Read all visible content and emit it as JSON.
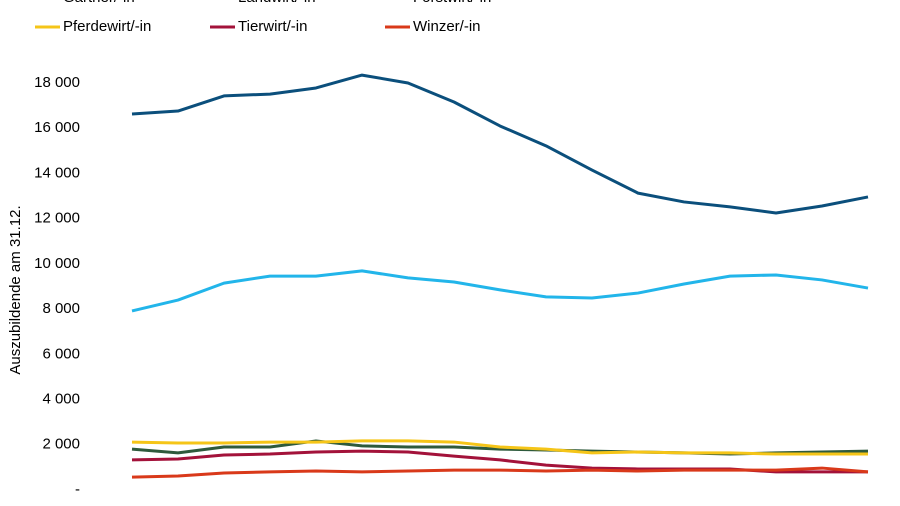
{
  "chart_data": {
    "type": "line",
    "y_label": "Auszubildende am 31.12.",
    "categories": [
      null,
      null,
      null,
      null,
      null,
      null,
      null,
      null,
      null,
      null,
      null,
      null,
      null,
      null,
      null,
      null,
      null
    ],
    "series": [
      {
        "name": "Gärtner/-in",
        "color": "#0b4f7c",
        "values": [
          16630,
          16760,
          17430,
          17510,
          17780,
          18350,
          18000,
          17160,
          16100,
          15220,
          14150,
          13130,
          12740,
          12520,
          12250,
          12560,
          12960
        ]
      },
      {
        "name": "Landwirt/-in",
        "color": "#22b5ea",
        "values": [
          7920,
          8400,
          9150,
          9460,
          9460,
          9690,
          9380,
          9200,
          8850,
          8540,
          8490,
          8710,
          9110,
          9460,
          9510,
          9290,
          8930
        ]
      },
      {
        "name": "Forstwirt/-in",
        "color": "#2e5a3c",
        "values": [
          1810,
          1640,
          1900,
          1900,
          2170,
          1950,
          1900,
          1900,
          1810,
          1770,
          1720,
          1680,
          1640,
          1590,
          1640,
          1680,
          1720
        ]
      },
      {
        "name": "Pferdewirt/-in",
        "color": "#f5c518",
        "values": [
          2120,
          2080,
          2080,
          2120,
          2120,
          2170,
          2170,
          2120,
          1900,
          1810,
          1640,
          1680,
          1640,
          1640,
          1590,
          1590,
          1590
        ]
      },
      {
        "name": "Tierwirt/-in",
        "color": "#a3123a",
        "values": [
          1330,
          1370,
          1550,
          1590,
          1680,
          1720,
          1680,
          1500,
          1330,
          1100,
          970,
          930,
          930,
          930,
          800,
          800,
          800
        ]
      },
      {
        "name": "Winzer/-in",
        "color": "#d9391a",
        "values": [
          570,
          620,
          750,
          800,
          840,
          800,
          840,
          880,
          880,
          840,
          880,
          840,
          880,
          880,
          880,
          970,
          800
        ]
      }
    ],
    "ylim": [
      0,
      18000
    ],
    "yticks": [
      {
        "value": 0,
        "label": "-"
      },
      {
        "value": 2000,
        "label": "2 000"
      },
      {
        "value": 4000,
        "label": "4 000"
      },
      {
        "value": 6000,
        "label": "6 000"
      },
      {
        "value": 8000,
        "label": "8 000"
      },
      {
        "value": 10000,
        "label": "10 000"
      },
      {
        "value": 12000,
        "label": "12 000"
      },
      {
        "value": 14000,
        "label": "14 000"
      },
      {
        "value": 16000,
        "label": "16 000"
      },
      {
        "value": 18000,
        "label": "18 000"
      }
    ],
    "grid": false
  }
}
